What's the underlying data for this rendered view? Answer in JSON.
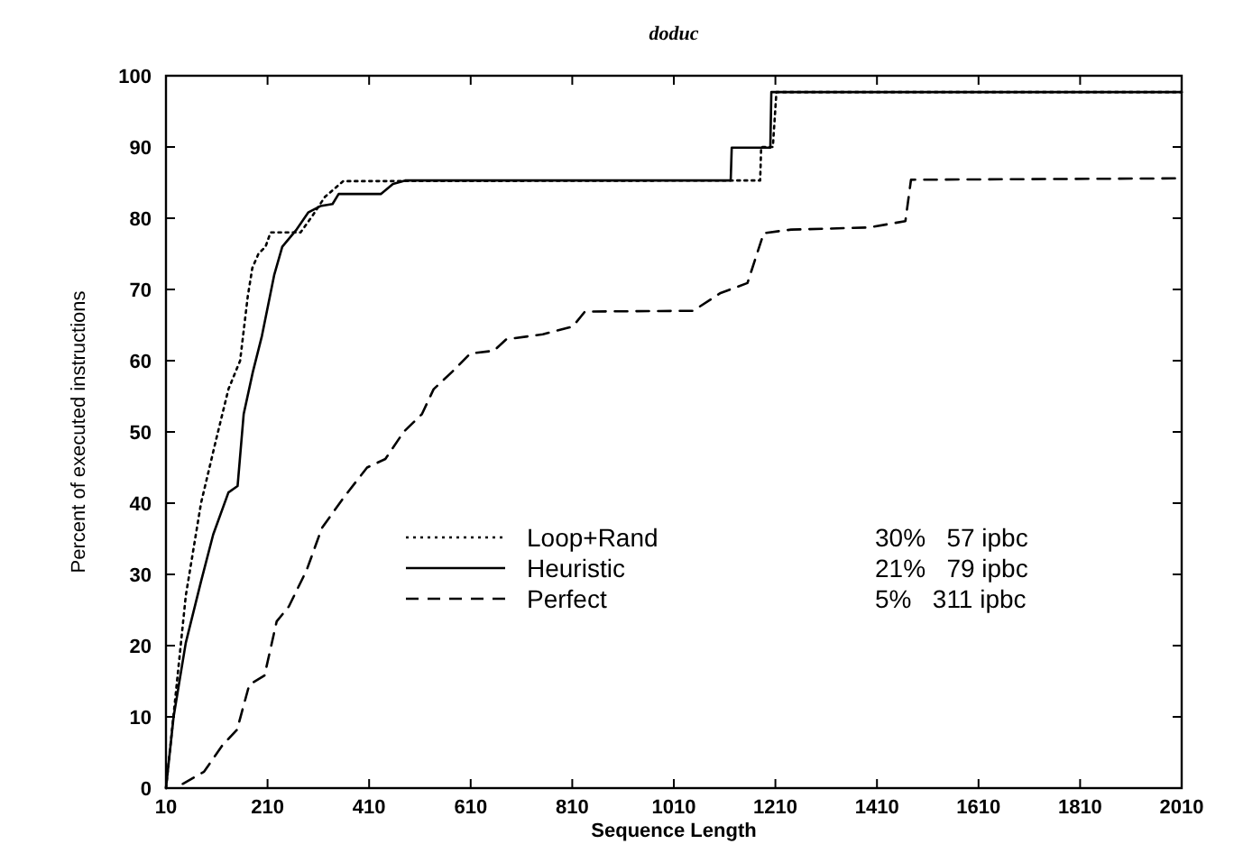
{
  "chart_data": {
    "type": "line",
    "title": "doduc",
    "xlabel": "Sequence Length",
    "ylabel": "Percent of executed instructions",
    "xlim": [
      10,
      2010
    ],
    "xticks": [
      10,
      210,
      410,
      610,
      810,
      1010,
      1210,
      1410,
      1610,
      1810,
      2010
    ],
    "ylim": [
      0,
      100
    ],
    "yticks": [
      0,
      10,
      20,
      30,
      40,
      50,
      60,
      70,
      80,
      90,
      100
    ],
    "legend": "bottom left",
    "grid": false,
    "series": [
      {
        "name": "Loop+Rand",
        "color": "#000000",
        "line_style": "dotted",
        "x": [
          10,
          25,
          49,
          79,
          109,
          133,
          156,
          171,
          180,
          192,
          206,
          216,
          240,
          275,
          299,
          323,
          359,
          1180,
          1182,
          1205,
          1212,
          2010
        ],
        "values": [
          0,
          10.3,
          27,
          40,
          49,
          56,
          60,
          69,
          73,
          75,
          76,
          78,
          78,
          78,
          80.4,
          83,
          85.2,
          85.3,
          90,
          90,
          97.7,
          97.7
        ]
      },
      {
        "name": "Heuristic",
        "color": "#000000",
        "line_style": "solid",
        "x": [
          10,
          25,
          49,
          79,
          103,
          133,
          151,
          163,
          181,
          199,
          223,
          239,
          266,
          290,
          314,
          338,
          350,
          433,
          457,
          481,
          1122,
          1124,
          1200,
          1202,
          1212,
          2010
        ],
        "values": [
          0,
          10,
          20.4,
          29,
          35.6,
          41.5,
          42.4,
          52.5,
          58.4,
          63.5,
          72,
          76,
          78.3,
          80.8,
          81.7,
          82,
          83.4,
          83.4,
          84.8,
          85.3,
          85.3,
          89.9,
          89.9,
          97.7,
          97.7,
          97.7
        ]
      },
      {
        "name": "Perfect",
        "color": "#000000",
        "line_style": "dashed",
        "x": [
          43,
          85,
          121,
          150,
          174,
          204,
          228,
          252,
          287,
          317,
          359,
          406,
          442,
          478,
          514,
          537,
          573,
          609,
          656,
          680,
          752,
          811,
          835,
          1048,
          1102,
          1155,
          1187,
          1241,
          1395,
          1466,
          1477,
          2010
        ],
        "values": [
          0.6,
          2.3,
          6,
          8.2,
          14.5,
          15.8,
          23.4,
          25.5,
          30.6,
          36.5,
          40.7,
          45,
          46.2,
          50,
          52.5,
          56,
          58.4,
          61,
          61.4,
          63,
          63.7,
          64.8,
          66.9,
          67,
          69.5,
          70.9,
          77.9,
          78.4,
          78.7,
          79.6,
          85.4,
          85.6
        ]
      }
    ],
    "annotations": [
      "30%   57 ipbc",
      "21%   79 ipbc",
      "5%   311 ipbc"
    ]
  }
}
